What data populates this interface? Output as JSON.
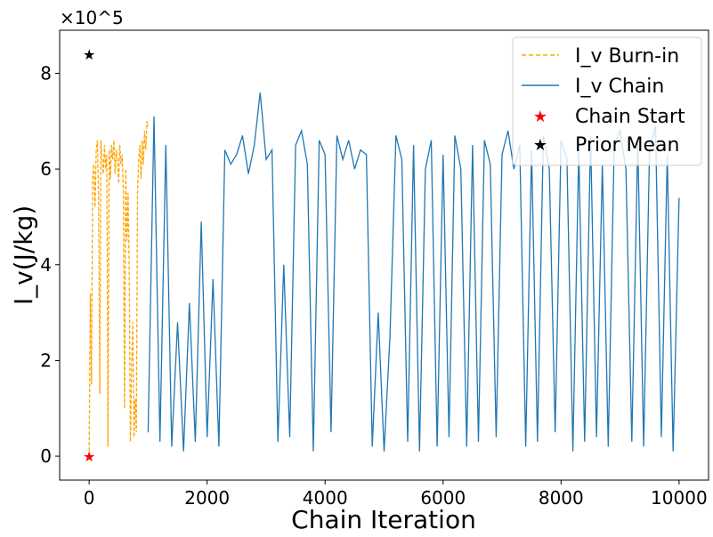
{
  "chart_data": {
    "type": "line",
    "title": "",
    "xlabel": "Chain Iteration",
    "ylabel": "I_v(J/kg)",
    "y_offset_label": "×10^5",
    "xlim": [
      -500,
      10500
    ],
    "ylim": [
      -0.5,
      8.9
    ],
    "x_ticks": [
      0,
      2000,
      4000,
      6000,
      8000,
      10000
    ],
    "x_tick_labels": [
      "0",
      "2000",
      "4000",
      "6000",
      "8000",
      "10000"
    ],
    "y_ticks": [
      0,
      2,
      4,
      6,
      8
    ],
    "y_tick_labels": [
      "0",
      "2",
      "4",
      "6",
      "8"
    ],
    "grid": false,
    "legend_position": "top-right",
    "series": [
      {
        "name": "I_v Burn-in",
        "style": "dashed",
        "color": "#ffa500",
        "x": [
          0,
          20,
          40,
          60,
          80,
          100,
          120,
          140,
          160,
          180,
          200,
          220,
          240,
          260,
          280,
          300,
          320,
          340,
          360,
          380,
          400,
          420,
          440,
          460,
          480,
          500,
          520,
          540,
          560,
          580,
          600,
          620,
          640,
          660,
          680,
          700,
          720,
          740,
          760,
          780,
          800,
          820,
          840,
          860,
          880,
          900,
          920,
          940,
          960,
          980,
          1000
        ],
        "values": [
          0,
          3.4,
          1.5,
          5.8,
          6.1,
          5.2,
          6.4,
          6.6,
          5.5,
          1.3,
          6.6,
          6.2,
          5.9,
          6.5,
          6.0,
          6.3,
          0.2,
          6.4,
          5.8,
          6.5,
          6.2,
          6.6,
          5.9,
          6.4,
          6.2,
          5.7,
          6.5,
          6.1,
          6.3,
          5.5,
          1.0,
          6.0,
          4.5,
          5.5,
          3.8,
          0.3,
          1.9,
          2.8,
          0.4,
          1.2,
          0.5,
          5.5,
          6.2,
          6.5,
          5.8,
          6.6,
          6.1,
          6.8,
          6.4,
          7.0,
          6.9
        ]
      },
      {
        "name": "I_v Chain",
        "style": "solid",
        "color": "#1f77b4",
        "x": [
          1000,
          1100,
          1200,
          1300,
          1400,
          1500,
          1600,
          1700,
          1800,
          1900,
          2000,
          2100,
          2200,
          2300,
          2400,
          2500,
          2600,
          2700,
          2800,
          2900,
          3000,
          3100,
          3200,
          3300,
          3400,
          3500,
          3600,
          3700,
          3800,
          3900,
          4000,
          4100,
          4200,
          4300,
          4400,
          4500,
          4600,
          4700,
          4800,
          4900,
          5000,
          5100,
          5200,
          5300,
          5400,
          5500,
          5600,
          5700,
          5800,
          5900,
          6000,
          6100,
          6200,
          6300,
          6400,
          6500,
          6600,
          6700,
          6800,
          6900,
          7000,
          7100,
          7200,
          7300,
          7400,
          7500,
          7600,
          7700,
          7800,
          7900,
          8000,
          8100,
          8200,
          8300,
          8400,
          8500,
          8600,
          8700,
          8800,
          8900,
          9000,
          9100,
          9200,
          9300,
          9400,
          9500,
          9600,
          9700,
          9800,
          9900,
          10000
        ],
        "values": [
          0.5,
          7.1,
          0.3,
          6.5,
          0.2,
          2.8,
          0.1,
          3.2,
          0.3,
          4.9,
          0.4,
          3.7,
          0.2,
          6.4,
          6.1,
          6.3,
          6.7,
          5.9,
          6.5,
          7.6,
          6.2,
          6.4,
          0.3,
          4.0,
          0.4,
          6.5,
          6.8,
          6.1,
          0.1,
          6.6,
          6.3,
          0.5,
          6.7,
          6.2,
          6.6,
          6.0,
          6.4,
          6.3,
          0.2,
          3.0,
          0.1,
          2.5,
          6.7,
          6.2,
          0.3,
          6.5,
          0.1,
          6.0,
          6.6,
          0.2,
          6.3,
          0.4,
          6.7,
          6.0,
          0.2,
          6.5,
          0.3,
          6.6,
          6.1,
          0.4,
          6.3,
          6.8,
          6.0,
          6.5,
          0.2,
          6.4,
          0.3,
          6.7,
          6.0,
          0.5,
          6.6,
          6.2,
          0.1,
          6.4,
          0.3,
          6.7,
          0.4,
          6.1,
          0.2,
          6.5,
          6.8,
          6.0,
          0.3,
          6.6,
          0.2,
          6.4,
          6.9,
          0.4,
          6.3,
          0.1,
          5.4
        ]
      },
      {
        "name": "Chain Start",
        "style": "marker",
        "marker": "star",
        "color": "#ff0000",
        "x": [
          0
        ],
        "values": [
          0
        ]
      },
      {
        "name": "Prior Mean",
        "style": "marker",
        "marker": "star",
        "color": "#000000",
        "x": [
          0
        ],
        "values": [
          8.4
        ]
      }
    ]
  }
}
